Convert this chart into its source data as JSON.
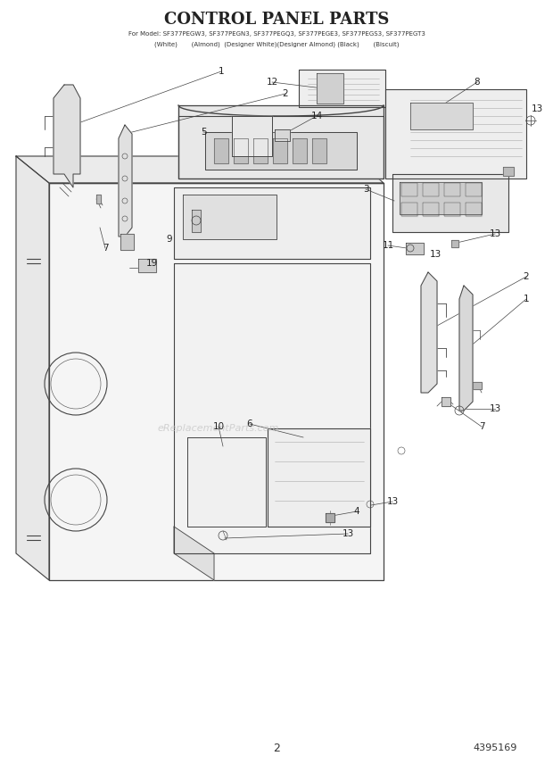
{
  "title": "CONTROL PANEL PARTS",
  "subtitle_line1": "For Model: SF377PEGW3, SF377PEGN3, SF377PEGQ3, SF377PEGE3, SF377PEGS3, SF377PEGT3",
  "subtitle_line2": "(White)       (Almond)  (Designer White)(Designer Almond) (Black)       (Biscuit)",
  "page_number": "2",
  "part_number": "4395169",
  "watermark": "eReplacementParts.com",
  "bg_color": "#ffffff",
  "lc": "#444444",
  "fill_light": "#f2f2f2",
  "fill_mid": "#e0e0e0",
  "fill_dark": "#cccccc"
}
